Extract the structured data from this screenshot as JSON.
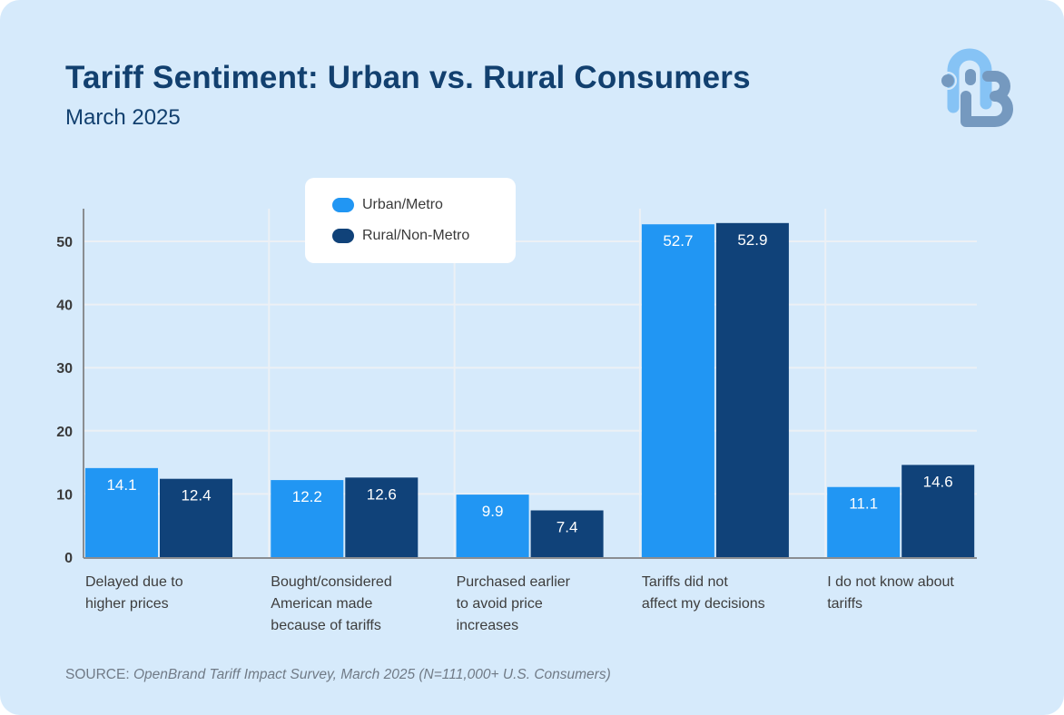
{
  "header": {
    "title": "Tariff Sentiment: Urban vs. Rural Consumers",
    "subtitle": "March 2025"
  },
  "logo": {
    "icon": "openbrand-logo-icon",
    "colors": {
      "light": "#86c3f5",
      "dark": "#7599bf"
    }
  },
  "footer": {
    "source_label": "SOURCE: ",
    "source_text": "OpenBrand Tariff Impact Survey, March 2025 (N=111,000+ U.S. Consumers)"
  },
  "colors": {
    "background": "#d6eafb",
    "urban": "#2196f3",
    "rural": "#104279",
    "title": "#12406f",
    "grid": "#ecf0f5",
    "axis": "#8a8d91"
  },
  "chart_data": {
    "type": "bar",
    "title": "Tariff Sentiment: Urban vs. Rural Consumers",
    "subtitle": "March 2025",
    "xlabel": "",
    "ylabel": "",
    "ylim": [
      0,
      55
    ],
    "yticks": [
      0,
      10,
      20,
      30,
      40,
      50
    ],
    "grid": true,
    "legend_position": "top-left",
    "categories": [
      [
        "Delayed due to",
        "higher prices"
      ],
      [
        "Bought/considered",
        "American made",
        "because of tariffs"
      ],
      [
        "Purchased earlier",
        "to avoid price",
        "increases"
      ],
      [
        "Tariffs did not",
        "affect my decisions"
      ],
      [
        "I do not know about",
        "tariffs"
      ]
    ],
    "series": [
      {
        "name": "Urban/Metro",
        "color": "#2196f3",
        "values": [
          14.1,
          12.2,
          9.9,
          52.7,
          11.1
        ]
      },
      {
        "name": "Rural/Non-Metro",
        "color": "#104279",
        "values": [
          12.4,
          12.6,
          7.4,
          52.9,
          14.6
        ]
      }
    ],
    "data_labels": true
  }
}
